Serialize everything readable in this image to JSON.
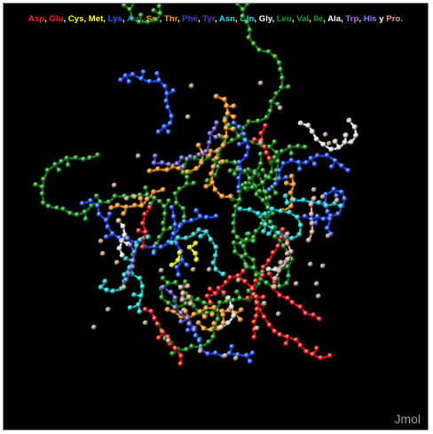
{
  "legend": {
    "items": [
      {
        "label": "Asp",
        "color": "#ff2020"
      },
      {
        "label": "Glu",
        "color": "#ff2020"
      },
      {
        "label": "Cys",
        "color": "#ffff20"
      },
      {
        "label": "Met",
        "color": "#ffff20"
      },
      {
        "label": "Lys",
        "color": "#2a5cff"
      },
      {
        "label": "Arg",
        "color": "#2a5cff"
      },
      {
        "label": "Ser",
        "color": "#ff9a10"
      },
      {
        "label": "Thr",
        "color": "#ff9a10"
      },
      {
        "label": "Phe",
        "color": "#4a42c8"
      },
      {
        "label": "Tyr",
        "color": "#4a42c8"
      },
      {
        "label": "Asn",
        "color": "#20e0e0"
      },
      {
        "label": "Gln",
        "color": "#20e0e0"
      },
      {
        "label": "Gly",
        "color": "#ffffff"
      },
      {
        "label": "Leu",
        "color": "#1fa21f"
      },
      {
        "label": "Val",
        "color": "#1fa21f"
      },
      {
        "label": "Ile",
        "color": "#1fa21f"
      },
      {
        "label": "Ala",
        "color": "#ffffff"
      },
      {
        "label": "Trp",
        "color": "#b46ee8"
      },
      {
        "label": "His",
        "color": "#8080ff"
      },
      {
        "label": "Pro.",
        "color": "#f0a0a0"
      }
    ],
    "conjunction": "y"
  },
  "watermark": "Jmol",
  "colors": {
    "background": "#000000",
    "water": "#c8aa82",
    "red": "#e81818",
    "blue": "#2050f0",
    "green": "#1a8a1a",
    "orange": "#f09418",
    "cyan": "#18c8c8",
    "white": "#e6e6e6",
    "yellow": "#f0f020",
    "violet": "#5a50c8",
    "pink": "#e4a0a0"
  }
}
